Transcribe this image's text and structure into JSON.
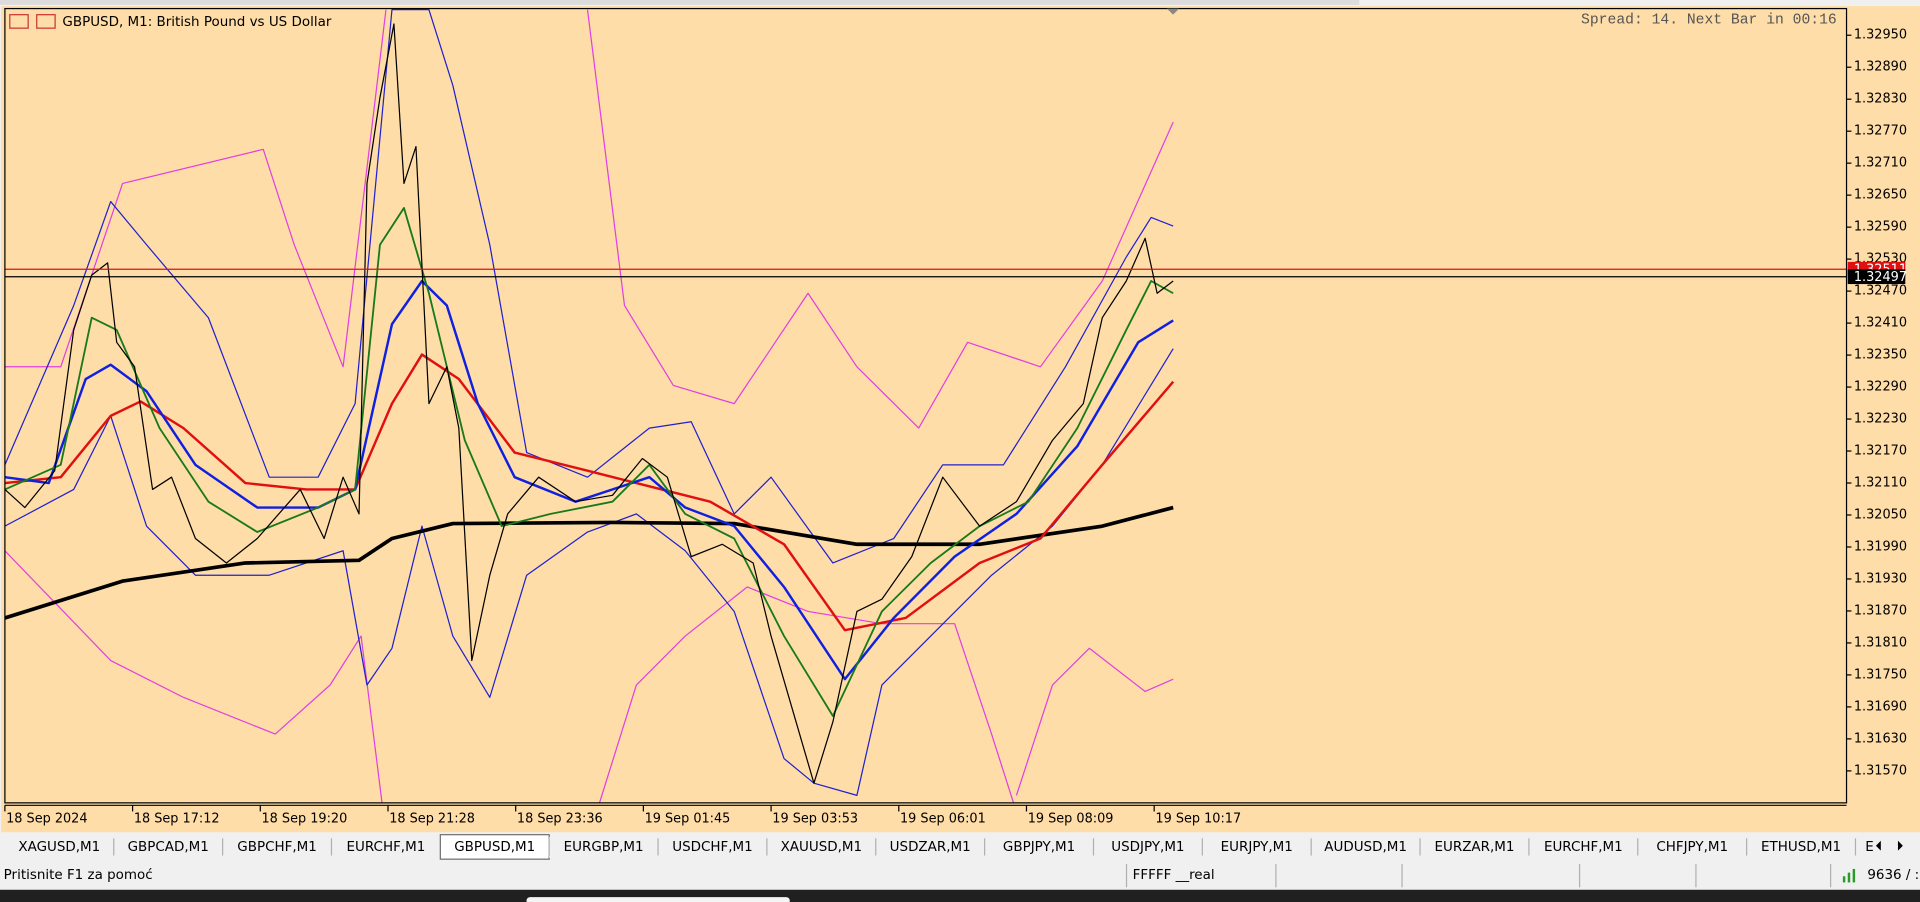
{
  "window": {
    "title": "GBPUSD, M1:  British Pound vs US Dollar",
    "spread": "Spread: 14. Next Bar in 00:16"
  },
  "chart_data": {
    "type": "line",
    "background": "#fedda8",
    "xlim": [
      0,
      1846
    ],
    "ylim": [
      1.3151,
      1.33
    ],
    "xticks": [
      {
        "value": 0,
        "label": "18 Sep 2024"
      },
      {
        "value": 128,
        "label": "18 Sep 17:12"
      },
      {
        "value": 256,
        "label": "18 Sep 19:20"
      },
      {
        "value": 384,
        "label": "18 Sep 21:28"
      },
      {
        "value": 512,
        "label": "18 Sep 23:36"
      },
      {
        "value": 640,
        "label": "19 Sep 01:45"
      },
      {
        "value": 768,
        "label": "19 Sep 03:53"
      },
      {
        "value": 896,
        "label": "19 Sep 06:01"
      },
      {
        "value": 1024,
        "label": "19 Sep 08:09"
      },
      {
        "value": 1152,
        "label": "19 Sep 10:17"
      }
    ],
    "yticks": [
      {
        "value": 1.3295,
        "label": "1.32950"
      },
      {
        "value": 1.3289,
        "label": "1.32890"
      },
      {
        "value": 1.3283,
        "label": "1.32830"
      },
      {
        "value": 1.3277,
        "label": "1.32770"
      },
      {
        "value": 1.3271,
        "label": "1.32710"
      },
      {
        "value": 1.3265,
        "label": "1.32650"
      },
      {
        "value": 1.3259,
        "label": "1.32590"
      },
      {
        "value": 1.3253,
        "label": "1.32530"
      },
      {
        "value": 1.3247,
        "label": "1.32470"
      },
      {
        "value": 1.3241,
        "label": "1.32410"
      },
      {
        "value": 1.3235,
        "label": "1.32350"
      },
      {
        "value": 1.3229,
        "label": "1.32290"
      },
      {
        "value": 1.3223,
        "label": "1.32230"
      },
      {
        "value": 1.3217,
        "label": "1.32170"
      },
      {
        "value": 1.3211,
        "label": "1.32110"
      },
      {
        "value": 1.3205,
        "label": "1.32050"
      },
      {
        "value": 1.3199,
        "label": "1.31990"
      },
      {
        "value": 1.3193,
        "label": "1.31930"
      },
      {
        "value": 1.3187,
        "label": "1.31870"
      },
      {
        "value": 1.3181,
        "label": "1.31810"
      },
      {
        "value": 1.3175,
        "label": "1.31750"
      },
      {
        "value": 1.3169,
        "label": "1.31690"
      },
      {
        "value": 1.3163,
        "label": "1.31630"
      },
      {
        "value": 1.3157,
        "label": "1.31570"
      }
    ],
    "series": [
      {
        "color": "#e040e0",
        "width": 1,
        "x": [
          0,
          56,
          118,
          259,
          290,
          339,
          382,
          null,
          584,
          621,
          670,
          731,
          805,
          854,
          916,
          965,
          1038,
          1100,
          1171
        ],
        "values": [
          1.32328,
          1.32328,
          1.32672,
          1.32736,
          1.32557,
          1.32328,
          1.32998,
          null,
          1.32998,
          1.32443,
          1.32293,
          1.32259,
          1.32466,
          1.32328,
          1.32213,
          1.32374,
          1.32328,
          1.32489,
          1.32787
        ]
      },
      {
        "color": "#e040e0",
        "width": 1,
        "x": [
          0,
          106,
          179,
          271,
          326,
          357,
          378,
          null,
          596,
          633,
          682,
          744,
          805,
          879,
          952,
          989,
          1011,
          null,
          1014,
          1050,
          1087,
          1143,
          1171
        ],
        "values": [
          1.31983,
          1.31777,
          1.31708,
          1.31639,
          1.31731,
          1.31823,
          1.3151,
          null,
          1.3151,
          1.31731,
          1.31823,
          1.31915,
          1.31869,
          1.31846,
          1.31846,
          1.31639,
          1.3151,
          null,
          1.31524,
          1.31731,
          1.318,
          1.31719,
          1.31742
        ]
      },
      {
        "color": "#2020d0",
        "width": 1,
        "x": [
          0,
          69,
          106,
          142,
          204,
          265,
          314,
          351,
          388,
          425,
          449,
          486,
          523,
          584,
          646,
          688,
          731,
          768,
          830,
          891,
          940,
          1001,
          1063,
          1124,
          1149,
          1171
        ],
        "values": [
          1.32144,
          1.32443,
          1.32638,
          1.32557,
          1.3242,
          1.32121,
          1.32121,
          1.32259,
          1.32998,
          1.32998,
          1.32856,
          1.32557,
          1.32167,
          1.32121,
          1.32213,
          1.32225,
          1.32052,
          1.32121,
          1.3196,
          1.32006,
          1.32144,
          1.32144,
          1.32328,
          1.32534,
          1.32608,
          1.32592
        ]
      },
      {
        "color": "#2020d0",
        "width": 1,
        "x": [
          0,
          69,
          106,
          142,
          191,
          265,
          339,
          363,
          388,
          418,
          449,
          486,
          523,
          584,
          633,
          682,
          731,
          781,
          811,
          854,
          879,
          928,
          989,
          1050,
          1100,
          1171
        ],
        "values": [
          1.32029,
          1.32098,
          1.32236,
          1.32029,
          1.31937,
          1.31937,
          1.31983,
          1.31731,
          1.318,
          1.32029,
          1.31823,
          1.31708,
          1.31937,
          1.32018,
          1.32052,
          1.31983,
          1.31869,
          1.31593,
          1.31547,
          1.31524,
          1.31731,
          1.31823,
          1.31937,
          1.32029,
          1.32144,
          1.32362
        ]
      },
      {
        "color": "#000000",
        "width": 3,
        "x": [
          0,
          118,
          241,
          355,
          388,
          449,
          609,
          731,
          854,
          977,
          1100,
          1171
        ],
        "values": [
          1.31857,
          1.31926,
          1.3196,
          1.31965,
          1.32006,
          1.32034,
          1.32036,
          1.32034,
          1.31995,
          1.31995,
          1.32029,
          1.32064
        ]
      },
      {
        "color": "#e01010",
        "width": 2,
        "x": [
          0,
          56,
          106,
          136,
          179,
          241,
          302,
          351,
          388,
          418,
          455,
          511,
          584,
          633,
          707,
          781,
          842,
          903,
          977,
          1038,
          1100,
          1171
        ],
        "values": [
          1.3211,
          1.32121,
          1.32236,
          1.32263,
          1.32213,
          1.3211,
          1.32098,
          1.32098,
          1.32259,
          1.32351,
          1.32305,
          1.32167,
          1.32133,
          1.3211,
          1.32075,
          1.31995,
          1.31834,
          1.31857,
          1.3196,
          1.32006,
          1.32144,
          1.323
        ]
      },
      {
        "color": "#1020e0",
        "width": 2,
        "x": [
          0,
          44,
          81,
          106,
          142,
          191,
          253,
          314,
          351,
          388,
          418,
          443,
          474,
          511,
          572,
          646,
          682,
          731,
          781,
          842,
          891,
          952,
          1014,
          1075,
          1136,
          1171
        ],
        "values": [
          1.32121,
          1.3211,
          1.32305,
          1.32332,
          1.32282,
          1.32144,
          1.32064,
          1.32064,
          1.32098,
          1.32408,
          1.32489,
          1.32443,
          1.32259,
          1.32121,
          1.32075,
          1.32121,
          1.32064,
          1.32029,
          1.31915,
          1.31742,
          1.31857,
          1.31972,
          1.32052,
          1.32179,
          1.32374,
          1.32415
        ]
      },
      {
        "color": "#1a7a1a",
        "width": 1.5,
        "x": [
          0,
          56,
          87,
          112,
          155,
          204,
          253,
          314,
          351,
          376,
          400,
          425,
          461,
          498,
          547,
          609,
          646,
          682,
          731,
          781,
          830,
          879,
          928,
          977,
          1026,
          1075,
          1124,
          1149,
          1171
        ],
        "values": [
          1.32098,
          1.32144,
          1.3242,
          1.32397,
          1.32213,
          1.32075,
          1.32018,
          1.32064,
          1.32098,
          1.32557,
          1.32626,
          1.32466,
          1.3219,
          1.32029,
          1.32052,
          1.32075,
          1.32144,
          1.32052,
          1.32006,
          1.31823,
          1.31673,
          1.31869,
          1.3196,
          1.32029,
          1.32075,
          1.32213,
          1.32397,
          1.32489,
          1.32466
        ]
      },
      {
        "color": "#000000",
        "width": 1,
        "x": [
          0,
          20,
          50,
          69,
          87,
          103,
          112,
          130,
          148,
          167,
          191,
          222,
          253,
          296,
          320,
          339,
          355,
          363,
          376,
          390,
          400,
          412,
          425,
          443,
          455,
          468,
          486,
          504,
          535,
          572,
          609,
          639,
          664,
          688,
          719,
          750,
          768,
          793,
          811,
          830,
          854,
          879,
          909,
          940,
          977,
          1014,
          1050,
          1081,
          1100,
          1124,
          1143,
          1155,
          1171
        ],
        "values": [
          1.32098,
          1.32064,
          1.32133,
          1.32397,
          1.325,
          1.32523,
          1.32374,
          1.32328,
          1.32098,
          1.32121,
          1.32006,
          1.3196,
          1.32006,
          1.32098,
          1.32006,
          1.32121,
          1.32052,
          1.32672,
          1.32833,
          1.32971,
          1.32672,
          1.32741,
          1.32259,
          1.32328,
          1.32213,
          1.31777,
          1.31937,
          1.32052,
          1.32121,
          1.32075,
          1.32087,
          1.32156,
          1.32121,
          1.31972,
          1.31995,
          1.3196,
          1.31823,
          1.31662,
          1.31547,
          1.31662,
          1.31869,
          1.31892,
          1.31972,
          1.32121,
          1.32029,
          1.32075,
          1.3219,
          1.32259,
          1.3242,
          1.32489,
          1.32569,
          1.32466,
          1.32489
        ]
      }
    ],
    "hlines": [
      {
        "value": 1.32511,
        "label": "1.32511",
        "color": "#e01010"
      },
      {
        "value": 1.32497,
        "label": "1.32497",
        "color": "#000000"
      }
    ]
  },
  "tabs": [
    "XAGUSD,M1",
    "GBPCAD,M1",
    "GBPCHF,M1",
    "EURCHF,M1",
    "GBPUSD,M1",
    "EURGBP,M1",
    "USDCHF,M1",
    "XAUUSD,M1",
    "USDZAR,M1",
    "GBPJPY,M1",
    "USDJPY,M1",
    "EURJPY,M1",
    "AUDUSD,M1",
    "EURZAR,M1",
    "EURCHF,M1",
    "CHFJPY,M1",
    "ETHUSD,M1",
    "E"
  ],
  "active_tab": 4,
  "status": {
    "help": "Pritisnite F1 za pomoć",
    "account": "FFFFF __real",
    "traffic": "9636 / :"
  }
}
